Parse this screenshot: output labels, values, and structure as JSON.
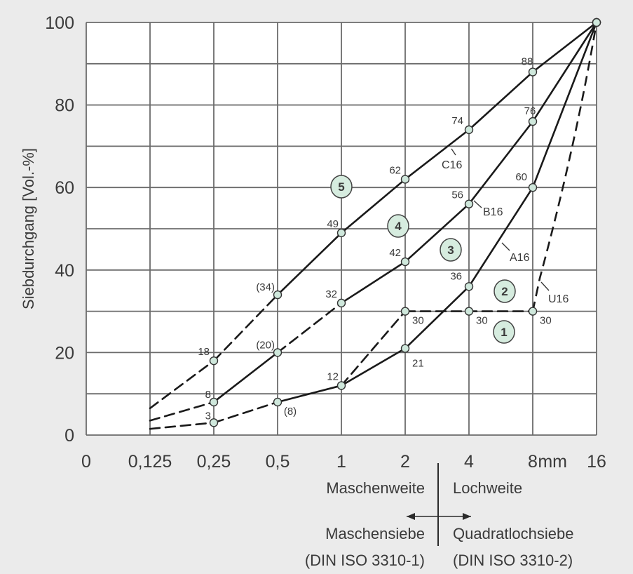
{
  "chart_data": {
    "type": "line",
    "title": "",
    "ylabel": "Siebdurchgang [Vol.-%]",
    "xlabel": "",
    "x_ticks": [
      "0",
      "0,125",
      "0,25",
      "0,5",
      "1",
      "2",
      "4",
      "8",
      "16"
    ],
    "x_unit": "mm",
    "y_ticks": [
      "0",
      "20",
      "40",
      "60",
      "80",
      "100"
    ],
    "ylim": [
      0,
      100
    ],
    "x_scale": "log2 (sieve sizes, 0 at origin)",
    "grid": true,
    "series": [
      {
        "name": "C16",
        "points": [
          {
            "x": 0.25,
            "y": 18,
            "label": "18"
          },
          {
            "x": 0.5,
            "y": 34,
            "label": "(34)"
          },
          {
            "x": 1,
            "y": 49,
            "label": "49"
          },
          {
            "x": 2,
            "y": 62,
            "label": "62"
          },
          {
            "x": 4,
            "y": 74,
            "label": "74"
          },
          {
            "x": 8,
            "y": 88,
            "label": "88"
          },
          {
            "x": 16,
            "y": 100,
            "label": ""
          }
        ]
      },
      {
        "name": "B16",
        "points": [
          {
            "x": 0.25,
            "y": 8,
            "label": "8"
          },
          {
            "x": 0.5,
            "y": 20,
            "label": "(20)"
          },
          {
            "x": 1,
            "y": 32,
            "label": "32"
          },
          {
            "x": 2,
            "y": 42,
            "label": "42"
          },
          {
            "x": 4,
            "y": 56,
            "label": "56"
          },
          {
            "x": 8,
            "y": 76,
            "label": "76"
          },
          {
            "x": 16,
            "y": 100,
            "label": ""
          }
        ]
      },
      {
        "name": "A16",
        "points": [
          {
            "x": 0.25,
            "y": 3,
            "label": "3"
          },
          {
            "x": 0.5,
            "y": 8,
            "label": "(8)"
          },
          {
            "x": 1,
            "y": 12,
            "label": "12"
          },
          {
            "x": 2,
            "y": 21,
            "label": "21"
          },
          {
            "x": 4,
            "y": 36,
            "label": "36"
          },
          {
            "x": 8,
            "y": 60,
            "label": "60"
          },
          {
            "x": 16,
            "y": 100,
            "label": ""
          }
        ]
      },
      {
        "name": "U16",
        "points": [
          {
            "x": 2,
            "y": 30,
            "label": "30"
          },
          {
            "x": 4,
            "y": 30,
            "label": "30"
          },
          {
            "x": 8,
            "y": 30,
            "label": "30"
          },
          {
            "x": 16,
            "y": 100,
            "label": ""
          }
        ]
      }
    ],
    "zones": [
      "1",
      "2",
      "3",
      "4",
      "5"
    ],
    "captions": {
      "left_top": "Maschenweite",
      "right_top": "Lochweite",
      "left_mid": "Maschensiebe",
      "right_mid": "Quadratlochsiebe",
      "left_bottom": "(DIN ISO 3310-1)",
      "right_bottom": "(DIN ISO 3310-2)"
    },
    "colors": {
      "background": "#ebebeb",
      "plot_background": "#ffffff",
      "grid": "#6b6b6b",
      "line": "#1a1a1a",
      "marker_fill": "#cfe8dc",
      "zone_fill": "#d6ecdf"
    }
  }
}
